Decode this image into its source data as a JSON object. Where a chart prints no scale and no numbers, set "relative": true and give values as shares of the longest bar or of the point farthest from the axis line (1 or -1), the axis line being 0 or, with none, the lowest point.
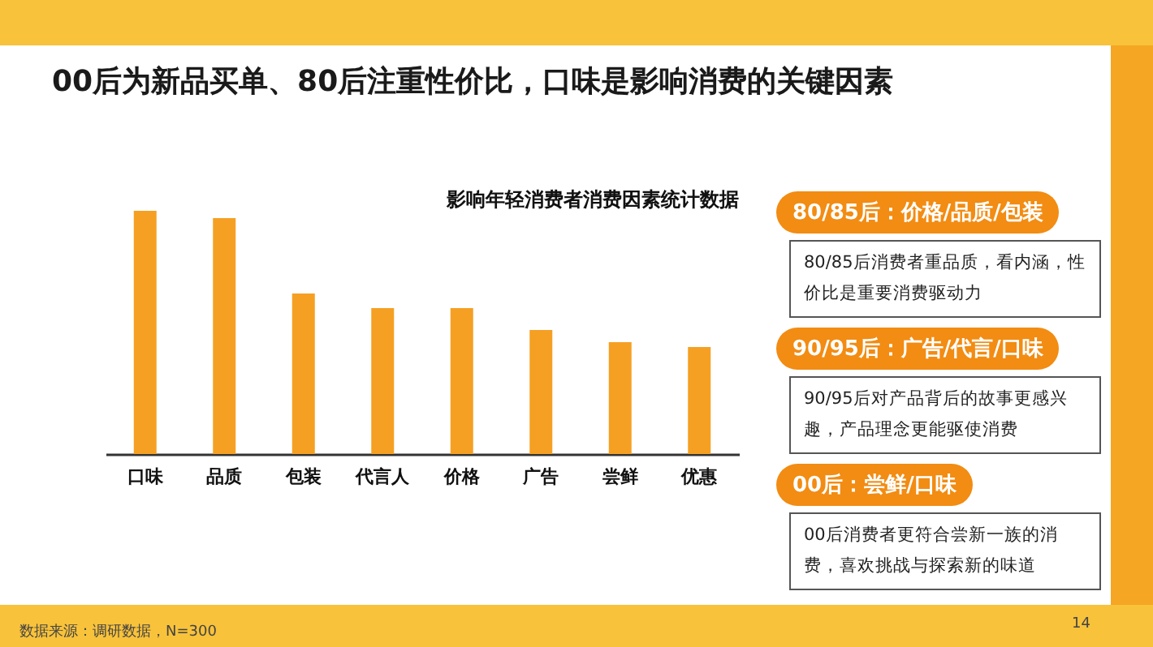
{
  "chart_data": [
    {
      "type": "bar",
      "title": "00后为新品买单、80后注重性价比，口味是影响消费的关键因素",
      "subtitle": "影响年轻消费者消费因素统计数据",
      "categories": [
        "口味",
        "品质",
        "包装",
        "代言人",
        "价格",
        "广告",
        "尝鲜",
        "优惠"
      ],
      "values": [
        1,
        0.97,
        0.66,
        0.6,
        0.6,
        0.51,
        0.46,
        0.44
      ],
      "color": "#f5a023",
      "relative": true,
      "grid": false,
      "annotations": [
        "数据来源：调研数据，N=300",
        "14"
      ]
    },
    {
      "type": "other",
      "annotations": [
        "80/85后：价格/品质/包装",
        "80/85后消费者重品质，看内涵，性价比是重要消费驱动力",
        "90/95后：广告/代言/口味",
        "90/95后对产品背后的故事更感兴趣，产品理念更能驱使消费",
        "00后：尝鲜/口味",
        "00后消费者更符合尝新一族的消费，喜欢挑战与探索新的味道"
      ]
    }
  ]
}
